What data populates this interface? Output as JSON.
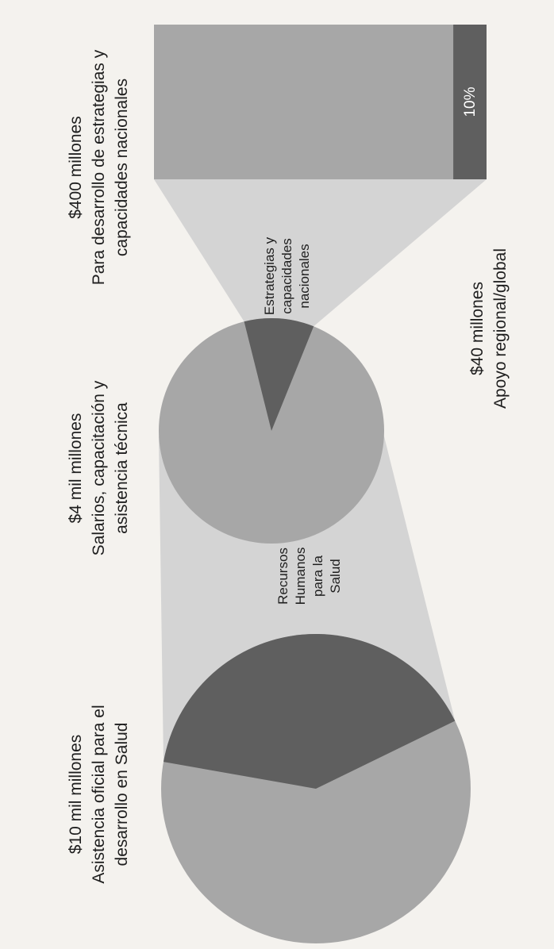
{
  "chart_data": {
    "type": "pie",
    "orientation_note": "",
    "colors": {
      "background": "#f4f2ee",
      "light_slice": "#a7a7a7",
      "dark_slice": "#5f5f5f",
      "connector": "#d4d4d4",
      "text": "#1e1e1e",
      "bar_label": "#ffffff"
    },
    "levels": [
      {
        "amount_label": "$10 mil millones",
        "description": [
          "Asistencia oficial para el",
          "desarrollo en Salud"
        ],
        "total_usd_millions": 10000,
        "highlight_label": [
          "Recursos",
          "Humanos",
          "para la",
          "Salud"
        ],
        "highlight_value_usd_millions": 4000
      },
      {
        "amount_label": "$4 mil millones",
        "description": [
          "Salarios, capacitación y",
          "asistencia técnica"
        ],
        "total_usd_millions": 4000,
        "highlight_label": [
          "Estrategias y",
          "capacidades",
          "nacionales"
        ],
        "highlight_value_usd_millions": 400
      },
      {
        "amount_label": "$400 millones",
        "description": [
          "Para desarrollo de estrategias y",
          "capacidades nacionales"
        ],
        "total_usd_millions": 400,
        "highlight_percent_label": "10%",
        "highlight_value_usd_millions": 40
      }
    ],
    "callout": {
      "amount_label": "$40 millones",
      "description": "Apoyo regional/global"
    }
  }
}
